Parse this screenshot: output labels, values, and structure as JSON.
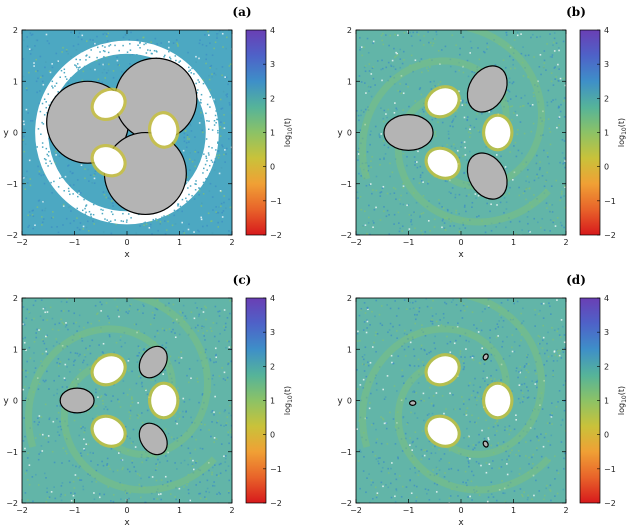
{
  "chart_data": [
    {
      "type": "heatmap",
      "panel_label": "(a)",
      "xlabel": "x",
      "ylabel": "y",
      "xlim": [
        -2,
        2
      ],
      "ylim": [
        -2,
        2
      ],
      "x_ticks": [
        -2,
        -1,
        0,
        1,
        2
      ],
      "y_ticks": [
        -2,
        -1,
        0,
        1,
        2
      ],
      "colorbar": {
        "label": "log10(t)",
        "range": [
          -2,
          4
        ],
        "ticks": [
          -2,
          -1,
          0,
          1,
          2,
          3,
          4
        ]
      },
      "background_color": "#4ca8c2",
      "white_ring": {
        "inner_radius": 1.5,
        "outer_radius": 1.75
      },
      "regular_islands": [
        {
          "center": [
            -0.75,
            0.2
          ],
          "radius": 0.78
        },
        {
          "center": [
            0.55,
            0.65
          ],
          "radius": 0.78
        },
        {
          "center": [
            0.35,
            -0.8
          ],
          "radius": 0.78
        }
      ],
      "holes": [
        {
          "center": [
            -0.35,
            0.55
          ]
        },
        {
          "center": [
            0.7,
            0.05
          ]
        },
        {
          "center": [
            -0.35,
            -0.55
          ]
        }
      ]
    },
    {
      "type": "heatmap",
      "panel_label": "(b)",
      "xlabel": "x",
      "ylabel": "y",
      "xlim": [
        -2,
        2
      ],
      "ylim": [
        -2,
        2
      ],
      "x_ticks": [
        -2,
        -1,
        0,
        1,
        2
      ],
      "y_ticks": [
        -2,
        -1,
        0,
        1,
        2
      ],
      "colorbar": {
        "label": "log10(t)",
        "range": [
          -2,
          4
        ],
        "ticks": [
          -2,
          -1,
          0,
          1,
          2,
          3,
          4
        ]
      },
      "background_color": "#62b5a8",
      "regular_islands": [
        {
          "center": [
            -1.0,
            0.0
          ],
          "size": 0.55
        },
        {
          "center": [
            0.5,
            0.85
          ],
          "size": 0.55
        },
        {
          "center": [
            0.5,
            -0.85
          ],
          "size": 0.55
        }
      ],
      "holes": [
        {
          "center": [
            -0.35,
            0.6
          ]
        },
        {
          "center": [
            0.7,
            0.0
          ]
        },
        {
          "center": [
            -0.35,
            -0.6
          ]
        }
      ]
    },
    {
      "type": "heatmap",
      "panel_label": "(c)",
      "xlabel": "x",
      "ylabel": "y",
      "xlim": [
        -2,
        2
      ],
      "ylim": [
        -2,
        2
      ],
      "x_ticks": [
        -2,
        -1,
        0,
        1,
        2
      ],
      "y_ticks": [
        -2,
        -1,
        0,
        1,
        2
      ],
      "colorbar": {
        "label": "log10(t)",
        "range": [
          -2,
          4
        ],
        "ticks": [
          -2,
          -1,
          0,
          1,
          2,
          3,
          4
        ]
      },
      "background_color": "#62b5a8",
      "regular_islands": [
        {
          "center": [
            -0.95,
            0.0
          ],
          "size": 0.38
        },
        {
          "center": [
            0.5,
            0.75
          ],
          "size": 0.38
        },
        {
          "center": [
            0.5,
            -0.75
          ],
          "size": 0.38
        }
      ],
      "holes": [
        {
          "center": [
            -0.35,
            0.6
          ]
        },
        {
          "center": [
            0.7,
            0.0
          ]
        },
        {
          "center": [
            -0.35,
            -0.6
          ]
        }
      ]
    },
    {
      "type": "heatmap",
      "panel_label": "(d)",
      "xlabel": "x",
      "ylabel": "y",
      "xlim": [
        -2,
        2
      ],
      "ylim": [
        -2,
        2
      ],
      "x_ticks": [
        -2,
        -1,
        0,
        1,
        2
      ],
      "y_ticks": [
        -2,
        -1,
        0,
        1,
        2
      ],
      "colorbar": {
        "label": "log10(t)",
        "range": [
          -2,
          4
        ],
        "ticks": [
          -2,
          -1,
          0,
          1,
          2,
          3,
          4
        ]
      },
      "background_color": "#62b5a8",
      "regular_islands": [
        {
          "center": [
            -0.92,
            -0.05
          ],
          "size": 0.07
        },
        {
          "center": [
            0.47,
            0.85
          ],
          "size": 0.07
        },
        {
          "center": [
            0.47,
            -0.85
          ],
          "size": 0.07
        }
      ],
      "holes": [
        {
          "center": [
            -0.35,
            0.6
          ]
        },
        {
          "center": [
            0.7,
            0.0
          ]
        },
        {
          "center": [
            -0.35,
            -0.6
          ]
        }
      ]
    }
  ],
  "colormap": [
    "#d7191c",
    "#e8632a",
    "#f0a035",
    "#c9c23a",
    "#8cc266",
    "#55b39a",
    "#3e8fc8",
    "#4e62c8",
    "#6a3fb4"
  ],
  "island_fill": "#b4b4b4",
  "hole_fill": "#ffffff"
}
